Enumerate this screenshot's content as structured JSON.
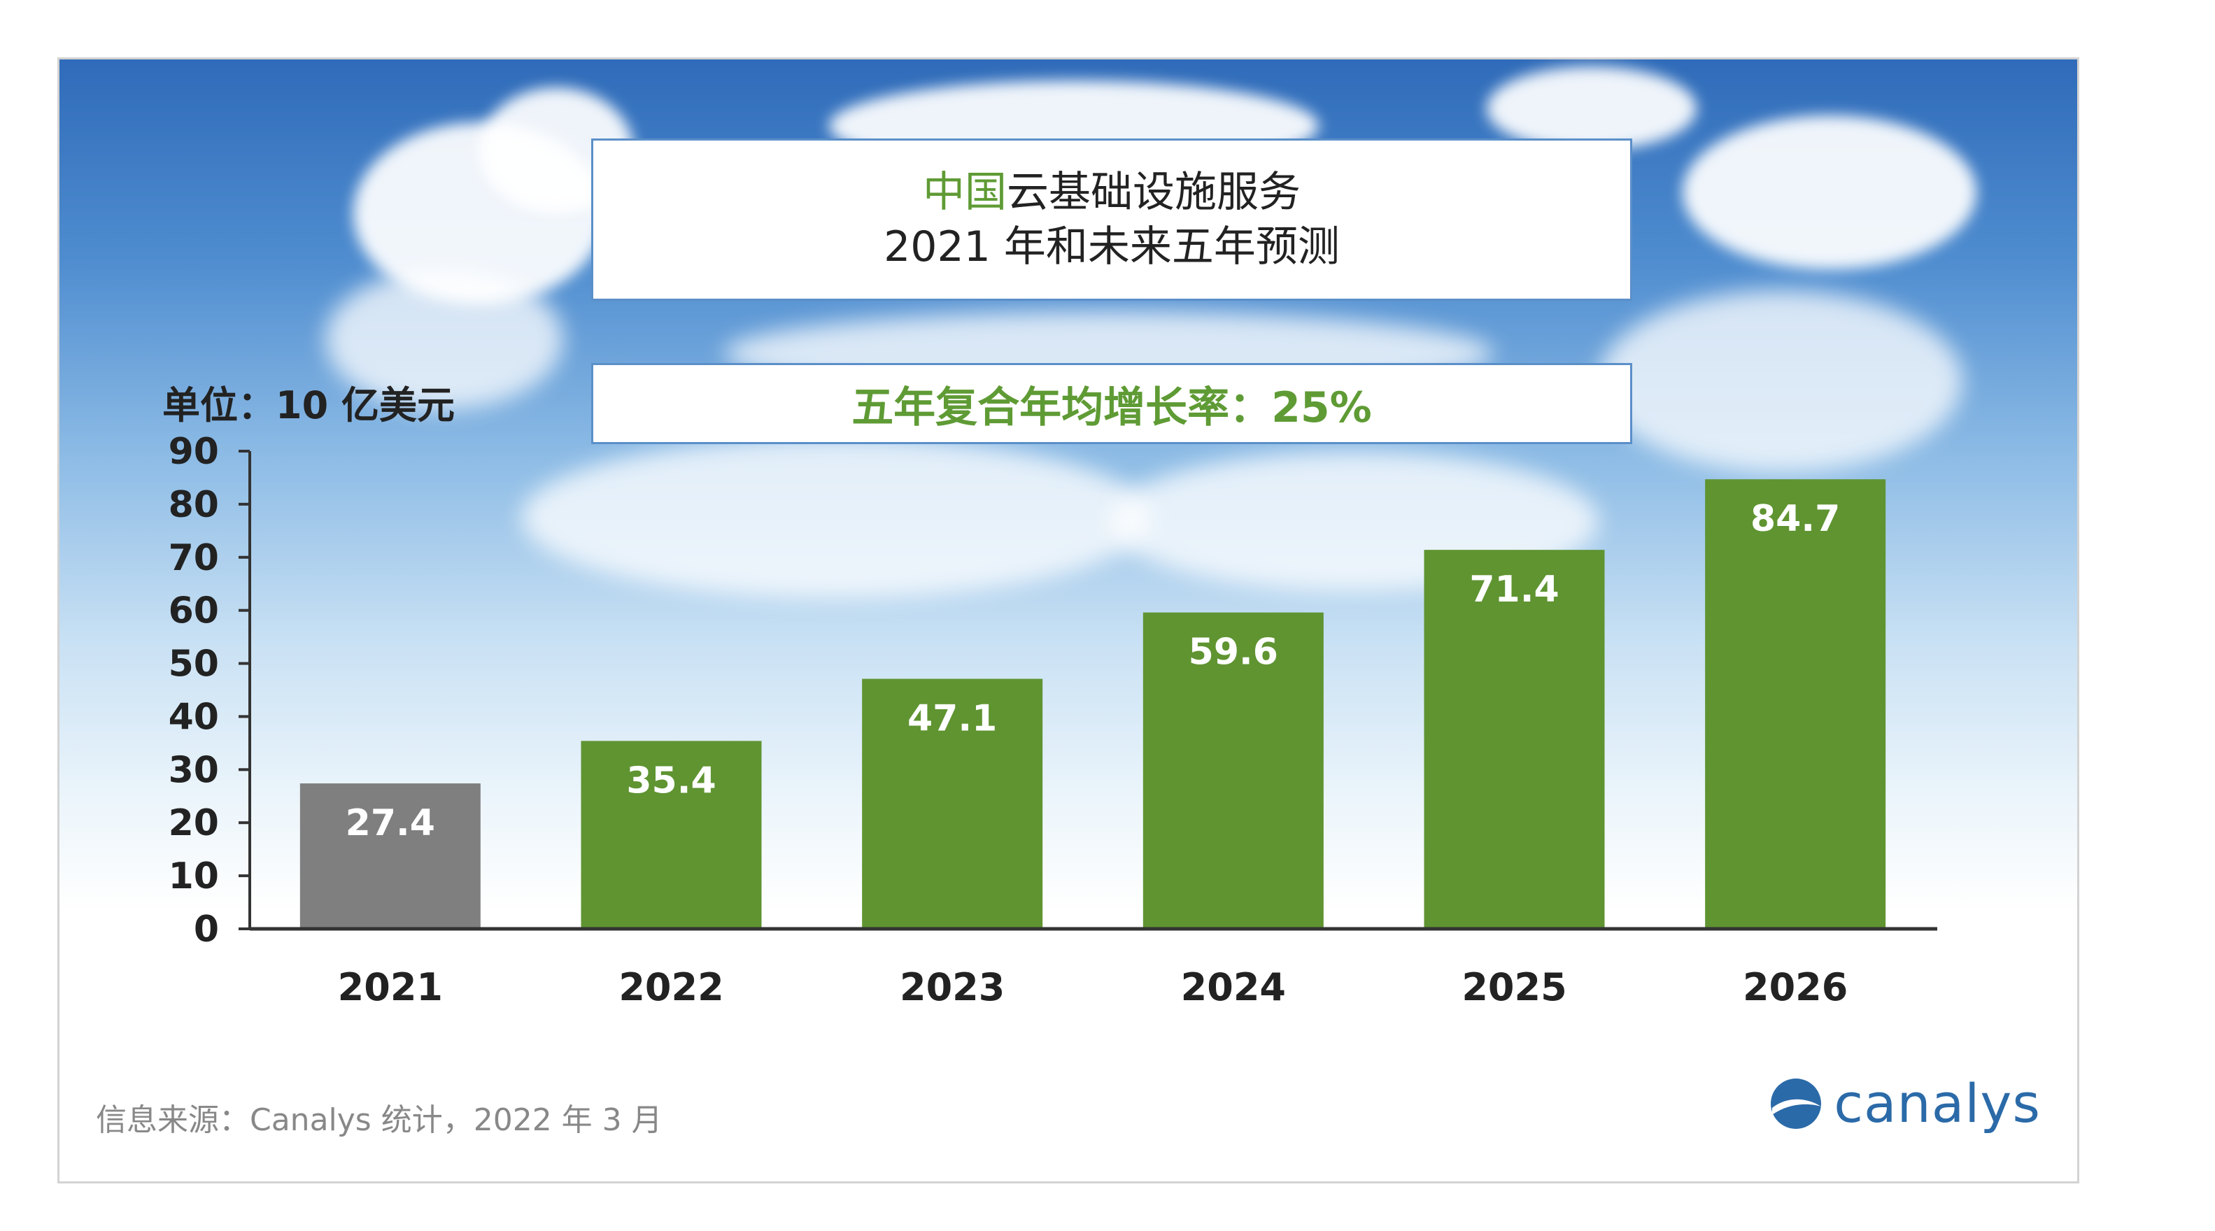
{
  "header": {
    "title_line1_highlight": "中国",
    "title_line1_rest": "云基础设施服务",
    "title_line2": "2021 年和未来五年预测",
    "cagr": "五年复合年均增长率：25%"
  },
  "footer": {
    "source": "信息来源：Canalys 统计，2022 年 3 月",
    "logo_text": "canalys"
  },
  "colors": {
    "actual": "#7f7f7f",
    "forecast": "#5f9431",
    "highlight_green": "#5f9b35",
    "logo_blue": "#2b6aa8"
  },
  "chart_data": {
    "type": "bar",
    "ylabel": "单位：10 亿美元",
    "ylim": [
      0,
      90
    ],
    "yticks": [
      0,
      10,
      20,
      30,
      40,
      50,
      60,
      70,
      80,
      90
    ],
    "categories": [
      "2021",
      "2022",
      "2023",
      "2024",
      "2025",
      "2026"
    ],
    "values": [
      27.4,
      35.4,
      47.1,
      59.6,
      71.4,
      84.7
    ],
    "labels": [
      "27.4",
      "35.4",
      "47.1",
      "59.6",
      "71.4",
      "84.7"
    ],
    "bar_colors": [
      "#7f7f7f",
      "#5f9431",
      "#5f9431",
      "#5f9431",
      "#5f9431",
      "#5f9431"
    ]
  }
}
